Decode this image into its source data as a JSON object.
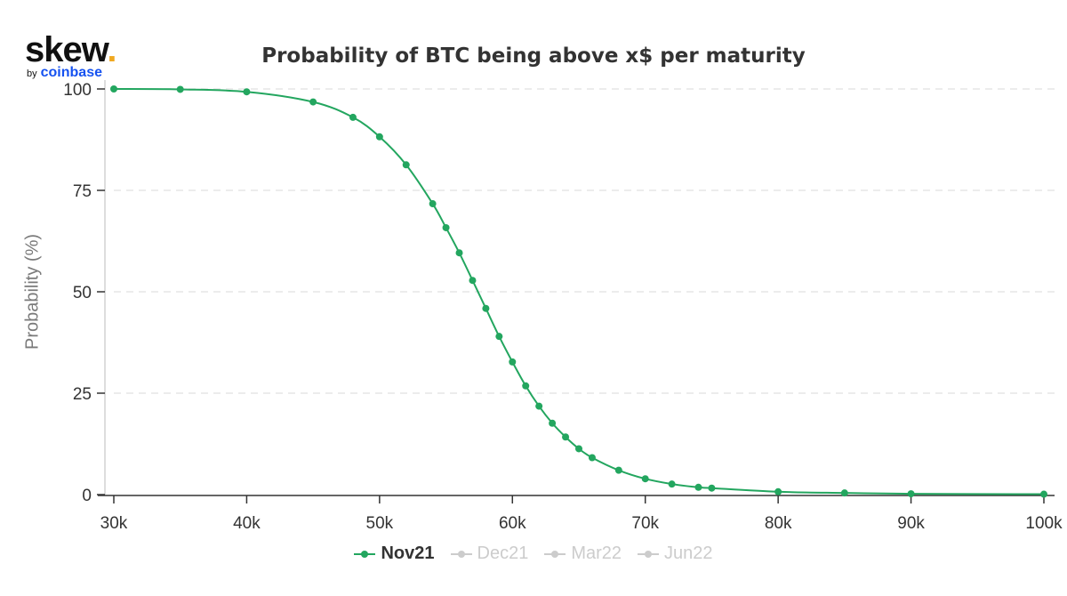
{
  "logo": {
    "main": "skew",
    "dot": ".",
    "by": "by",
    "brand": "coinbase"
  },
  "colors": {
    "series": "#23a65f",
    "inactive": "#cccccc",
    "grid": "#e6e6e6",
    "axis": "#333333"
  },
  "chart_data": {
    "type": "line",
    "title": "Probability of BTC being above x$ per maturity",
    "ylabel": "Probability (%)",
    "xlabel": "",
    "xlim": [
      30000,
      100000
    ],
    "ylim": [
      0,
      100
    ],
    "x_ticks": [
      30000,
      40000,
      50000,
      60000,
      70000,
      80000,
      90000,
      100000
    ],
    "x_tick_labels": [
      "30k",
      "40k",
      "50k",
      "60k",
      "70k",
      "80k",
      "90k",
      "100k"
    ],
    "y_ticks": [
      0,
      25,
      50,
      75,
      100
    ],
    "y_tick_labels": [
      "0",
      "25",
      "50",
      "75",
      "100"
    ],
    "grid": "horizontal dashed",
    "legend_position": "bottom-center",
    "series": [
      {
        "name": "Nov21",
        "visible": true,
        "x": [
          30000,
          35000,
          40000,
          45000,
          48000,
          50000,
          52000,
          54000,
          55000,
          56000,
          57000,
          58000,
          59000,
          60000,
          61000,
          62000,
          63000,
          64000,
          65000,
          66000,
          68000,
          70000,
          72000,
          74000,
          75000,
          80000,
          85000,
          90000,
          100000
        ],
        "y": [
          100,
          99.9,
          99.3,
          96.8,
          93.0,
          88.2,
          81.3,
          71.7,
          65.8,
          59.6,
          52.8,
          45.9,
          39.0,
          32.7,
          26.8,
          21.8,
          17.6,
          14.2,
          11.3,
          9.1,
          6.0,
          3.9,
          2.6,
          1.8,
          1.6,
          0.7,
          0.4,
          0.2,
          0.1
        ]
      },
      {
        "name": "Dec21",
        "visible": false
      },
      {
        "name": "Mar22",
        "visible": false
      },
      {
        "name": "Jun22",
        "visible": false
      }
    ]
  }
}
